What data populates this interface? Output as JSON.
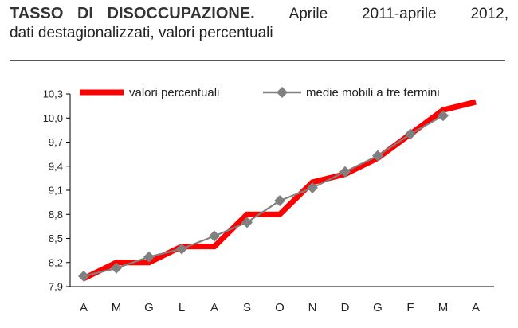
{
  "header": {
    "title_bold": "TASSO DI DISOCCUPAZIONE.",
    "title_part1": "Aprile",
    "title_part2": "2011-aprile",
    "title_part3": "2012,",
    "subtitle": "dati destagionalizzati, valori percentuali"
  },
  "chart_data": {
    "type": "line",
    "title": "",
    "xlabel": "",
    "ylabel": "",
    "categories": [
      "A",
      "M",
      "G",
      "L",
      "A",
      "S",
      "O",
      "N",
      "D",
      "G",
      "F",
      "M",
      "A"
    ],
    "ylim": [
      7.9,
      10.3
    ],
    "yticks": [
      "7,9",
      "8,2",
      "8,5",
      "8,8",
      "9,1",
      "9,4",
      "9,7",
      "10,0",
      "10,3"
    ],
    "ytick_values": [
      7.9,
      8.2,
      8.5,
      8.8,
      9.1,
      9.4,
      9.7,
      10.0,
      10.3
    ],
    "grid": false,
    "legend": "top",
    "series": [
      {
        "name": "valori percentuali",
        "color": "#ff0000",
        "values": [
          8.0,
          8.2,
          8.2,
          8.4,
          8.4,
          8.8,
          8.8,
          9.2,
          9.3,
          9.5,
          9.8,
          10.1,
          10.2
        ]
      },
      {
        "name": "medie mobili a tre termini",
        "color": "#808080",
        "marker": "diamond",
        "values": [
          8.03,
          8.13,
          8.27,
          8.37,
          8.53,
          8.7,
          8.97,
          9.13,
          9.33,
          9.53,
          9.8,
          10.03,
          null
        ]
      }
    ]
  }
}
